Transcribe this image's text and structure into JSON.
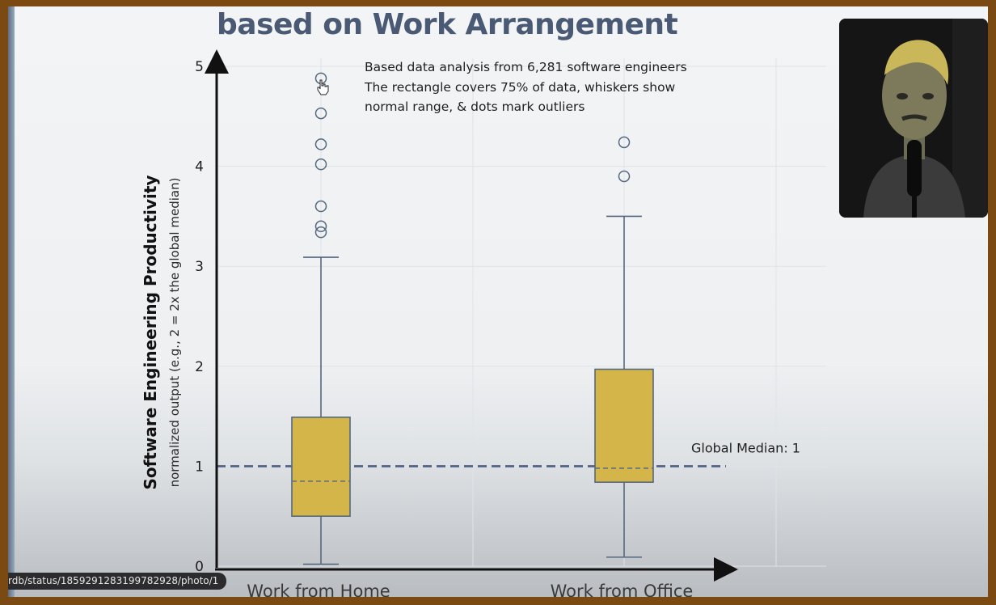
{
  "title": "based on Work Arrangement",
  "annotation_lines": [
    "Based data analysis from 6,281 software engineers",
    "The rectangle covers 75% of data, whiskers show",
    "normal range, & dots mark outliers"
  ],
  "url_tooltip": "rdb/status/1859291283199782928/photo/1",
  "colors": {
    "box_fill": "#d4b549",
    "box_stroke": "#55687f",
    "median_line": "#55687f",
    "global_median_line": "#4d5f86",
    "axis": "#111111",
    "grid": "#dfe3e8",
    "outlier": "#55687f"
  },
  "icons": [
    "mouse-cursor-icon"
  ],
  "chart_data": {
    "type": "box",
    "ylabel": "Software Engineering Productivity",
    "ylabel_sub": "normalized output (e.g., 2 = 2x the global median)",
    "ylim": [
      0,
      5
    ],
    "yticks": [
      0,
      1,
      2,
      3,
      4,
      5
    ],
    "grid": true,
    "categories": [
      "Work from Home",
      "Work from Office"
    ],
    "boxes": [
      {
        "category": "Work from Home",
        "whisker_low": 0.02,
        "q1": 0.5,
        "median": 0.85,
        "q3": 1.49,
        "whisker_high": 3.09,
        "outliers": [
          3.34,
          3.4,
          3.6,
          4.02,
          4.22,
          4.53,
          4.88
        ]
      },
      {
        "category": "Work from Office",
        "whisker_low": 0.09,
        "q1": 0.84,
        "median": 0.98,
        "q3": 1.97,
        "whisker_high": 3.5,
        "outliers": [
          3.9,
          4.24
        ]
      }
    ],
    "reference_line": {
      "label": "Global Median: 1",
      "value": 1
    }
  }
}
